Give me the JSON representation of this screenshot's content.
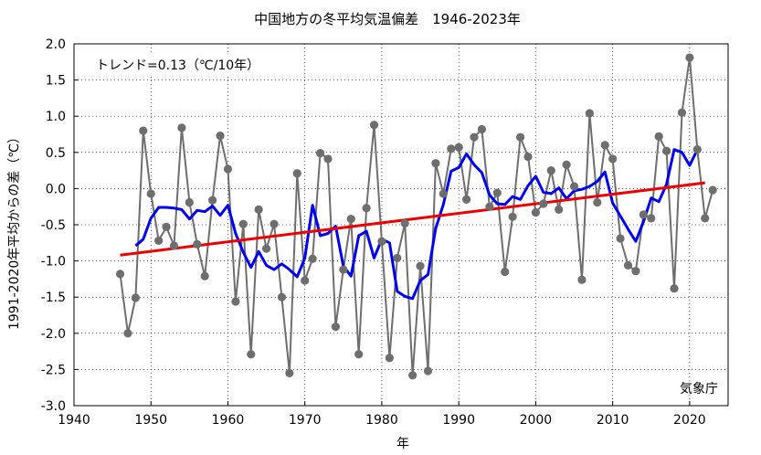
{
  "chart_data": {
    "type": "line",
    "title": "中国地方の冬平均気温偏差　1946-2023年",
    "xlabel": "年",
    "ylabel": "1991-2020年平均からの差（℃）",
    "xlim": [
      1940,
      2025
    ],
    "ylim": [
      -3.0,
      2.0
    ],
    "x_ticks": [
      1940,
      1950,
      1960,
      1970,
      1980,
      1990,
      2000,
      2010,
      2020
    ],
    "y_ticks": [
      -3.0,
      -2.5,
      -2.0,
      -1.5,
      -1.0,
      -0.5,
      0.0,
      0.5,
      1.0,
      1.5,
      2.0
    ],
    "grid": true,
    "annotations": {
      "trend_text": "トレンド=0.13（℃/10年）",
      "source_text": "気象庁"
    },
    "colors": {
      "annual": "#6e6e6e",
      "moving_average": "#0000ee",
      "trend": "#ee0000"
    },
    "series": [
      {
        "kind": "annual",
        "x": [
          1946,
          1947,
          1948,
          1949,
          1950,
          1951,
          1952,
          1953,
          1954,
          1955,
          1956,
          1957,
          1958,
          1959,
          1960,
          1961,
          1962,
          1963,
          1964,
          1965,
          1966,
          1967,
          1968,
          1969,
          1970,
          1971,
          1972,
          1973,
          1974,
          1975,
          1976,
          1977,
          1978,
          1979,
          1980,
          1981,
          1982,
          1983,
          1984,
          1985,
          1986,
          1987,
          1988,
          1989,
          1990,
          1991,
          1992,
          1993,
          1994,
          1995,
          1996,
          1997,
          1998,
          1999,
          2000,
          2001,
          2002,
          2003,
          2004,
          2005,
          2006,
          2007,
          2008,
          2009,
          2010,
          2011,
          2012,
          2013,
          2014,
          2015,
          2016,
          2017,
          2018,
          2019,
          2020,
          2021,
          2022,
          2023
        ],
        "values": [
          -1.18,
          -2.0,
          -1.51,
          0.8,
          -0.07,
          -0.72,
          -0.53,
          -0.79,
          0.84,
          -0.19,
          -0.77,
          -1.21,
          -0.16,
          0.73,
          0.27,
          -1.56,
          -0.49,
          -2.29,
          -0.29,
          -0.83,
          -0.49,
          -1.5,
          -2.55,
          0.21,
          -1.27,
          -0.97,
          0.49,
          0.41,
          -1.91,
          -1.12,
          -0.42,
          -2.29,
          -0.27,
          0.88,
          -0.73,
          -2.34,
          -0.96,
          -0.48,
          -2.58,
          -1.07,
          -2.52,
          0.35,
          -0.07,
          0.55,
          0.57,
          -0.15,
          0.71,
          0.82,
          -0.25,
          -0.06,
          -1.15,
          -0.39,
          0.71,
          0.44,
          -0.33,
          -0.21,
          0.25,
          -0.29,
          0.33,
          0.03,
          -1.26,
          1.04,
          -0.19,
          0.6,
          0.41,
          -0.69,
          -1.06,
          -1.14,
          -0.36,
          -0.41,
          0.72,
          0.52,
          -1.38,
          1.05,
          1.81,
          0.54,
          -0.41,
          -0.02
        ]
      },
      {
        "kind": "five_year_moving_average",
        "x": [
          1948,
          1949,
          1950,
          1951,
          1952,
          1953,
          1954,
          1955,
          1956,
          1957,
          1958,
          1959,
          1960,
          1961,
          1962,
          1963,
          1964,
          1965,
          1966,
          1967,
          1968,
          1969,
          1970,
          1971,
          1972,
          1973,
          1974,
          1975,
          1976,
          1977,
          1978,
          1979,
          1980,
          1981,
          1982,
          1983,
          1984,
          1985,
          1986,
          1987,
          1988,
          1989,
          1990,
          1991,
          1992,
          1993,
          1994,
          1995,
          1996,
          1997,
          1998,
          1999,
          2000,
          2001,
          2002,
          2003,
          2004,
          2005,
          2006,
          2007,
          2008,
          2009,
          2010,
          2011,
          2012,
          2013,
          2014,
          2015,
          2016,
          2017,
          2018,
          2019,
          2020,
          2021
        ],
        "values": [
          -0.79,
          -0.7,
          -0.41,
          -0.26,
          -0.26,
          -0.27,
          -0.29,
          -0.42,
          -0.3,
          -0.32,
          -0.24,
          -0.37,
          -0.23,
          -0.62,
          -0.88,
          -1.09,
          -0.87,
          -1.06,
          -1.12,
          -1.04,
          -1.12,
          -1.22,
          -0.96,
          -0.23,
          -0.65,
          -0.62,
          -0.52,
          -1.07,
          -1.21,
          -0.65,
          -0.59,
          -0.96,
          -0.7,
          -0.75,
          -1.42,
          -1.49,
          -1.52,
          -1.27,
          -1.19,
          -0.55,
          -0.22,
          0.24,
          0.29,
          0.48,
          0.33,
          0.22,
          -0.09,
          -0.21,
          -0.22,
          -0.11,
          -0.15,
          0.04,
          0.17,
          -0.05,
          -0.07,
          0.01,
          -0.14,
          -0.03,
          -0.01,
          0.03,
          0.1,
          0.23,
          -0.2,
          -0.38,
          -0.56,
          -0.73,
          -0.46,
          -0.13,
          -0.18,
          0.06,
          0.54,
          0.5,
          0.32,
          0.54
        ]
      },
      {
        "kind": "long_term_trend",
        "x": [
          1946,
          2022
        ],
        "values": [
          -0.92,
          0.08
        ]
      }
    ]
  }
}
